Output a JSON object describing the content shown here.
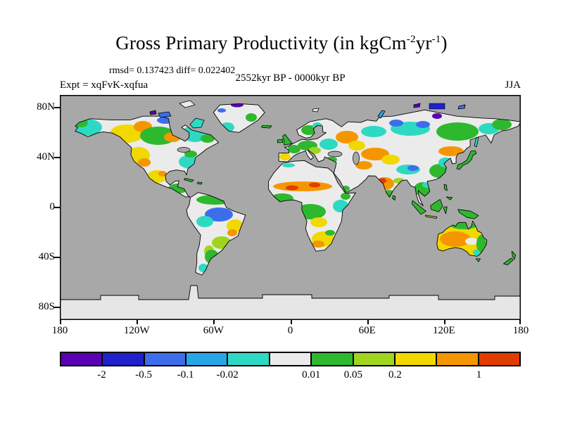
{
  "title": {
    "part1": "Gross Primary Productivity (in kgCm",
    "sup1": "-2",
    "part2": "yr",
    "sup2": "-1",
    "part3": ")"
  },
  "stats_line": "rmsd= 0.137423 diff= 0.022402",
  "header": {
    "expt": "Expt = xqFvK-xqfua",
    "period": "2552kyr BP - 0000kyr BP",
    "season": "JJA"
  },
  "axes": {
    "lat_labels": [
      "80N",
      "40N",
      "0",
      "40S",
      "80S"
    ],
    "lon_labels": [
      "180",
      "120W",
      "60W",
      "0",
      "60E",
      "120E",
      "180"
    ]
  },
  "colorbar": {
    "colors": [
      "#5a00b4",
      "#2020cd",
      "#3c6eeb",
      "#28a5e6",
      "#2ed9c3",
      "#ebebeb",
      "#2eb82e",
      "#9fd51e",
      "#f0d800",
      "#f59600",
      "#e13c00"
    ],
    "boundary_labels": [
      "-2",
      "-0.5",
      "-0.1",
      "-0.02",
      "",
      "0.01",
      "0.05",
      "0.2",
      "",
      "1"
    ]
  },
  "map": {
    "ocean_color": "#a8a8a8",
    "ice_color": "#e6e6e6",
    "land_neutral_color": "#ebebeb",
    "coastline_color": "#000000"
  }
}
